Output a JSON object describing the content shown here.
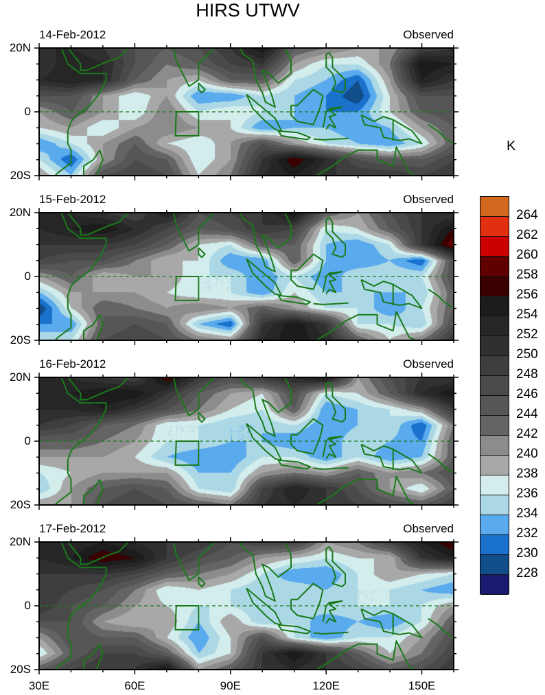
{
  "title": "HIRS UTWV",
  "unit": "K",
  "lat_labels": [
    "20N",
    "0",
    "20S"
  ],
  "lon_labels": [
    "30E",
    "60E",
    "90E",
    "120E",
    "150E"
  ],
  "colorbar": {
    "levels": [
      "264",
      "262",
      "260",
      "258",
      "256",
      "254",
      "252",
      "250",
      "248",
      "246",
      "244",
      "242",
      "240",
      "238",
      "236",
      "234",
      "232",
      "230",
      "228"
    ],
    "colors": [
      "#d2691e",
      "#e03010",
      "#cc0000",
      "#600000",
      "#3a0000",
      "#1c1c1c",
      "#262626",
      "#303030",
      "#3e3e3e",
      "#4a4a4a",
      "#565656",
      "#646464",
      "#8c8c8c",
      "#a8a8a8",
      "#d3ecec",
      "#acd8e6",
      "#5aaaee",
      "#1a72cc",
      "#124e8a",
      "#1a1a70"
    ]
  },
  "coast_color": "#1a7a1a",
  "chart_data": {
    "type": "heatmap",
    "lon": [
      30,
      40,
      50,
      60,
      70,
      80,
      90,
      100,
      110,
      120,
      130,
      140,
      150,
      160
    ],
    "lat": [
      20,
      15,
      10,
      5,
      0,
      -5,
      -10,
      -15,
      -20
    ],
    "panels": [
      {
        "date": "14-Feb-2012",
        "label": "Observed",
        "values": [
          [
            252,
            252,
            250,
            246,
            244,
            246,
            250,
            256,
            244,
            242,
            240,
            240,
            248,
            250
          ],
          [
            250,
            254,
            252,
            246,
            242,
            244,
            248,
            250,
            240,
            236,
            236,
            242,
            256,
            254
          ],
          [
            252,
            254,
            252,
            244,
            240,
            238,
            244,
            244,
            236,
            234,
            230,
            240,
            254,
            250
          ],
          [
            246,
            246,
            240,
            236,
            240,
            232,
            232,
            236,
            234,
            232,
            228,
            238,
            246,
            246
          ],
          [
            240,
            244,
            240,
            236,
            242,
            236,
            238,
            236,
            234,
            232,
            232,
            238,
            244,
            246
          ],
          [
            238,
            240,
            236,
            240,
            242,
            240,
            238,
            232,
            234,
            234,
            232,
            234,
            240,
            244
          ],
          [
            232,
            236,
            240,
            244,
            238,
            236,
            240,
            246,
            240,
            236,
            234,
            232,
            236,
            244
          ],
          [
            236,
            230,
            240,
            246,
            244,
            236,
            240,
            250,
            258,
            252,
            246,
            244,
            244,
            248
          ],
          [
            240,
            234,
            246,
            248,
            246,
            238,
            242,
            252,
            254,
            250,
            250,
            250,
            248,
            250
          ]
        ]
      },
      {
        "date": "15-Feb-2012",
        "label": "Observed",
        "values": [
          [
            252,
            252,
            250,
            248,
            254,
            246,
            248,
            250,
            256,
            244,
            240,
            246,
            250,
            250
          ],
          [
            252,
            254,
            256,
            252,
            248,
            244,
            246,
            250,
            248,
            236,
            238,
            244,
            250,
            256
          ],
          [
            250,
            250,
            250,
            248,
            244,
            238,
            236,
            244,
            244,
            234,
            232,
            236,
            250,
            260
          ],
          [
            248,
            246,
            246,
            242,
            238,
            238,
            232,
            232,
            244,
            234,
            232,
            234,
            230,
            246
          ],
          [
            240,
            244,
            238,
            240,
            240,
            236,
            236,
            232,
            236,
            232,
            236,
            236,
            236,
            246
          ],
          [
            234,
            240,
            240,
            240,
            238,
            236,
            236,
            232,
            238,
            234,
            234,
            234,
            234,
            244
          ],
          [
            228,
            238,
            244,
            242,
            240,
            242,
            240,
            244,
            240,
            236,
            236,
            232,
            236,
            244
          ],
          [
            232,
            232,
            244,
            246,
            244,
            234,
            230,
            250,
            256,
            250,
            236,
            236,
            234,
            246
          ],
          [
            236,
            236,
            246,
            248,
            246,
            242,
            240,
            252,
            256,
            252,
            244,
            238,
            242,
            250
          ]
        ]
      },
      {
        "date": "16-Feb-2012",
        "label": "Observed",
        "values": [
          [
            254,
            252,
            250,
            248,
            258,
            250,
            246,
            250,
            252,
            256,
            240,
            246,
            250,
            250
          ],
          [
            252,
            254,
            256,
            256,
            250,
            244,
            240,
            238,
            246,
            236,
            238,
            244,
            252,
            256
          ],
          [
            252,
            252,
            254,
            250,
            246,
            242,
            238,
            236,
            244,
            232,
            234,
            236,
            240,
            250
          ],
          [
            250,
            248,
            244,
            242,
            236,
            236,
            234,
            234,
            236,
            232,
            234,
            236,
            230,
            242
          ],
          [
            244,
            244,
            242,
            240,
            236,
            236,
            234,
            234,
            232,
            232,
            236,
            234,
            232,
            244
          ],
          [
            240,
            240,
            240,
            238,
            234,
            232,
            232,
            236,
            236,
            232,
            236,
            232,
            234,
            244
          ],
          [
            236,
            238,
            240,
            240,
            240,
            234,
            234,
            240,
            242,
            240,
            244,
            240,
            242,
            246
          ],
          [
            234,
            240,
            244,
            246,
            244,
            236,
            234,
            248,
            254,
            250,
            246,
            240,
            236,
            244
          ],
          [
            240,
            240,
            246,
            248,
            246,
            244,
            242,
            250,
            252,
            250,
            248,
            246,
            244,
            248
          ]
        ]
      },
      {
        "date": "17-Feb-2012",
        "label": "Observed",
        "values": [
          [
            252,
            252,
            254,
            252,
            250,
            250,
            246,
            248,
            248,
            240,
            242,
            248,
            254,
            258
          ],
          [
            252,
            254,
            258,
            256,
            250,
            246,
            244,
            240,
            238,
            236,
            238,
            238,
            250,
            254
          ],
          [
            250,
            250,
            250,
            248,
            244,
            242,
            240,
            236,
            232,
            232,
            236,
            240,
            238,
            236
          ],
          [
            250,
            248,
            246,
            242,
            236,
            238,
            236,
            234,
            236,
            234,
            236,
            236,
            234,
            232
          ],
          [
            250,
            246,
            244,
            240,
            238,
            236,
            236,
            234,
            234,
            236,
            236,
            236,
            236,
            240
          ],
          [
            246,
            246,
            240,
            238,
            240,
            234,
            240,
            234,
            236,
            232,
            234,
            232,
            236,
            244
          ],
          [
            240,
            246,
            244,
            244,
            238,
            232,
            238,
            246,
            236,
            232,
            236,
            236,
            240,
            246
          ],
          [
            236,
            244,
            248,
            248,
            244,
            234,
            238,
            250,
            256,
            250,
            244,
            238,
            242,
            248
          ],
          [
            244,
            248,
            250,
            250,
            256,
            240,
            244,
            250,
            252,
            250,
            248,
            244,
            246,
            250
          ]
        ]
      }
    ]
  }
}
